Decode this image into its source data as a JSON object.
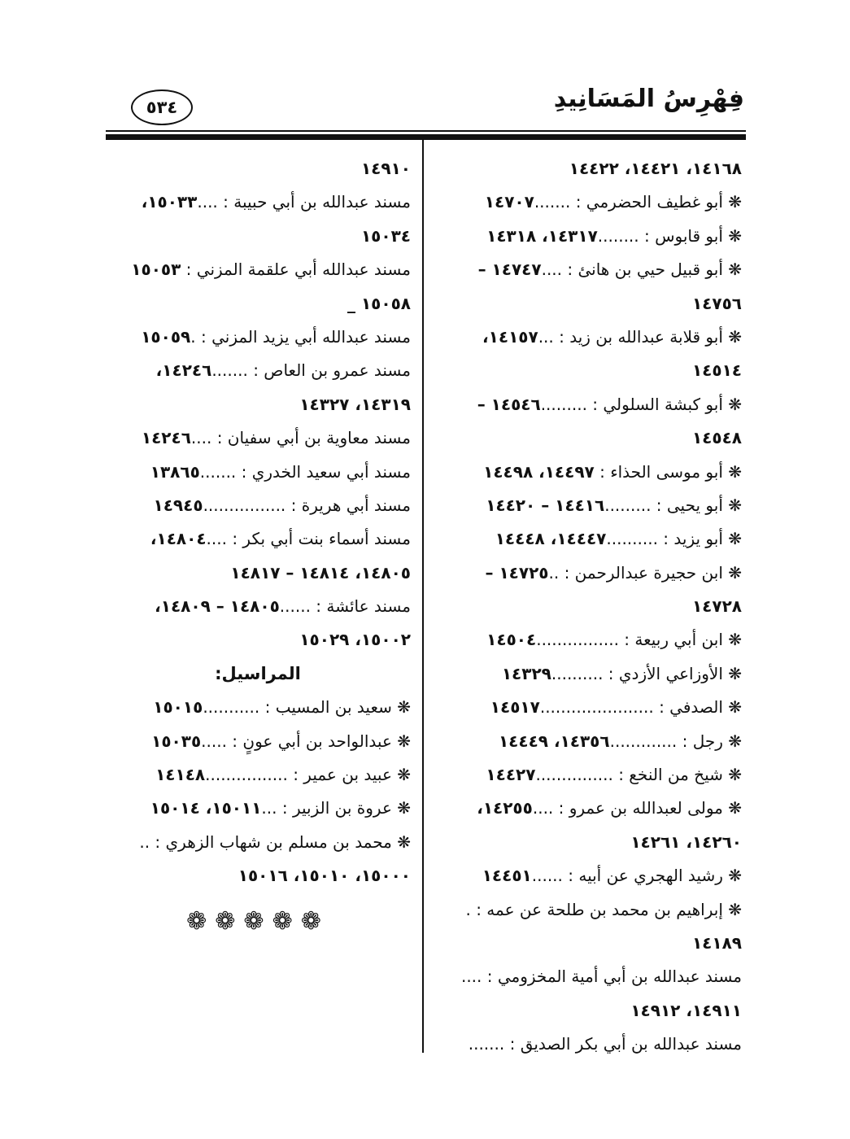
{
  "header": {
    "title": "فِهْرِسُ المَسَانِيدِ",
    "page_number": "٥٣٤"
  },
  "right_column": {
    "lines": [
      {
        "name": "",
        "refs": "١٤١٦٨، ١٤٤٢١، ١٤٤٢٢"
      },
      {
        "name": "❋ أبو غطيف الحضرمي : .......",
        "refs": "١٤٧٠٧"
      },
      {
        "name": "❋ أبو قابوس : ........",
        "refs": "١٤٣١٧، ١٤٣١٨"
      },
      {
        "name": "❋ أبو قبيل حيي بن هانئ : ....",
        "refs": "١٤٧٤٧ –"
      },
      {
        "name": "",
        "refs": "١٤٧٥٦"
      },
      {
        "name": "❋ أبو قلابة عبدالله بن زيد : ...",
        "refs": "١٤١٥٧،"
      },
      {
        "name": "",
        "refs": "١٤٥١٤"
      },
      {
        "name": "❋ أبو كبشة السلولي : .........",
        "refs": "١٤٥٤٦ –"
      },
      {
        "name": "",
        "refs": "١٤٥٤٨"
      },
      {
        "name": "❋ أبو موسى الحذاء : ",
        "refs": "١٤٤٩٧، ١٤٤٩٨"
      },
      {
        "name": "❋ أبو يحيى : .........",
        "refs": "١٤٤١٦ – ١٤٤٢٠"
      },
      {
        "name": "❋ أبو يزيد : ..........",
        "refs": "١٤٤٤٧، ١٤٤٤٨"
      },
      {
        "name": "❋ ابن حجيرة عبدالرحمن : ..",
        "refs": "١٤٧٢٥ –"
      },
      {
        "name": "",
        "refs": "١٤٧٢٨"
      },
      {
        "name": "❋ ابن أبي ربيعة : ................",
        "refs": "١٤٥٠٤"
      },
      {
        "name": "❋ الأوزاعي الأزدي : ..........",
        "refs": "١٤٣٢٩"
      },
      {
        "name": "❋ الصدفي : ......................",
        "refs": "١٤٥١٧"
      },
      {
        "name": "❋ رجل : .............",
        "refs": "١٤٣٥٦، ١٤٤٤٩"
      },
      {
        "name": "❋ شيخ من النخع : ...............",
        "refs": "١٤٤٢٧"
      },
      {
        "name": "❋ مولى لعبدالله بن عمرو : ....",
        "refs": "١٤٢٥٥،"
      },
      {
        "name": "",
        "refs": "١٤٢٦٠، ١٤٢٦١"
      },
      {
        "name": "❋ رشيد الهجري عن أبيه : ......",
        "refs": "١٤٤٥١"
      },
      {
        "name": "❋ إبراهيم بن محمد بن طلحة عن عمه : .",
        "refs": ""
      },
      {
        "name": "",
        "refs": "١٤١٨٩"
      },
      {
        "name": "مسند عبدالله بن أبي أمية المخزومي : ....",
        "refs": ""
      },
      {
        "name": "",
        "refs": "١٤٩١١، ١٤٩١٢"
      },
      {
        "name": "مسند عبدالله بن أبي بكر الصديق : .......",
        "refs": ""
      }
    ]
  },
  "left_column": {
    "lines_top": [
      {
        "name": "",
        "refs": "١٤٩١٠"
      },
      {
        "name": "مسند عبدالله بن أبي حبيبة : ....",
        "refs": "١٥٠٣٣،"
      },
      {
        "name": "",
        "refs": "١٥٠٣٤"
      },
      {
        "name": "مسند عبدالله أبي علقمة المزني : ",
        "refs": "١٥٠٥٣"
      },
      {
        "name": "",
        "refs": "١٥٠٥٨ _"
      },
      {
        "name": "مسند عبدالله أبي يزيد المزني : .",
        "refs": "١٥٠٥٩"
      },
      {
        "name": "مسند عمرو بن العاص : .......",
        "refs": "١٤٢٤٦،"
      },
      {
        "name": "",
        "refs": "١٤٣١٩، ١٤٣٢٧"
      },
      {
        "name": "مسند معاوية بن أبي سفيان : ....",
        "refs": "١٤٢٤٦"
      },
      {
        "name": "مسند أبي سعيد الخدري : .......",
        "refs": "١٣٨٦٥"
      },
      {
        "name": "مسند أبي هريرة : ................",
        "refs": "١٤٩٤٥"
      },
      {
        "name": "مسند أسماء بنت أبي بكر : ....",
        "refs": "١٤٨٠٤،"
      },
      {
        "name": "",
        "refs": "١٤٨٠٥، ١٤٨١٤ – ١٤٨١٧"
      },
      {
        "name": "مسند عائشة : ......",
        "refs": "١٤٨٠٥ – ١٤٨٠٩،"
      },
      {
        "name": "",
        "refs": "١٥٠٠٢، ١٥٠٢٩"
      }
    ],
    "heading": "المراسيل:",
    "lines_bottom": [
      {
        "name": "❋ سعيد بن المسيب : ...........",
        "refs": "١٥٠١٥"
      },
      {
        "name": "❋ عبدالواحد بن أبي عونٍ : .....",
        "refs": "١٥٠٣٥"
      },
      {
        "name": "❋ عبيد بن عمير : ................",
        "refs": "١٤١٤٨"
      },
      {
        "name": "❋ عروة بن الزبير : ...",
        "refs": "١٥٠١١، ١٥٠١٤"
      },
      {
        "name": "❋ محمد بن مسلم بن شهاب الزهري : ..",
        "refs": ""
      },
      {
        "name": "",
        "refs": "١٥٠٠٠، ١٥٠١٠، ١٥٠١٦"
      }
    ],
    "ornaments": "❁❁❁❁❁"
  }
}
